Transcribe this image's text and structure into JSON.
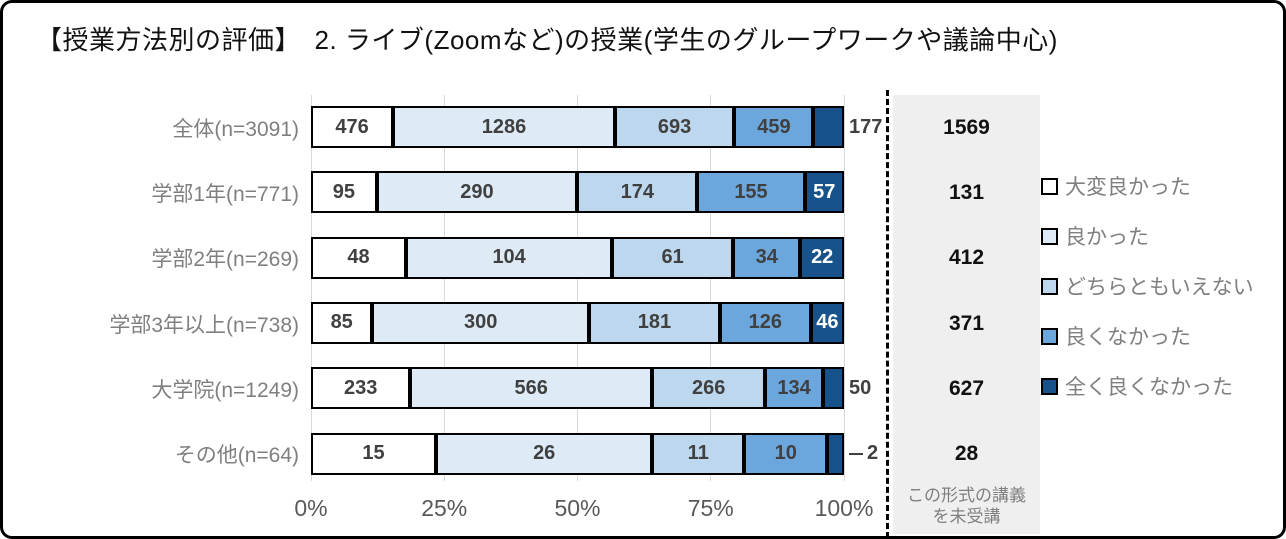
{
  "title": "【授業方法別の評価】　2. ライブ(Zoomなど)の授業(学生のグループワークや議論中心)",
  "colors": {
    "segment_colors": [
      "#FFFFFF",
      "#DEEBF7",
      "#BDD7EE",
      "#6BA6DC",
      "#17538A"
    ],
    "segment_border": "#000000",
    "gridline": "#D9D9D9",
    "category_label": "#7F7F7F",
    "value_label": "#404040",
    "value_label_on_dark": "#FFFFFF",
    "not_attended_bg": "#EFEFEF",
    "axis_label": "#595959"
  },
  "legend": {
    "items": [
      {
        "label": "大変良かった",
        "color": "#FFFFFF"
      },
      {
        "label": "良かった",
        "color": "#DEEBF7"
      },
      {
        "label": "どちらともいえない",
        "color": "#BDD7EE"
      },
      {
        "label": "良くなかった",
        "color": "#6BA6DC"
      },
      {
        "label": "全く良くなかった",
        "color": "#17538A"
      }
    ]
  },
  "x_axis": {
    "tick_labels": [
      "0%",
      "25%",
      "50%",
      "75%",
      "100%"
    ],
    "tick_percents": [
      0,
      25,
      50,
      75,
      100
    ]
  },
  "not_attended": {
    "note_line1": "この形式の講義",
    "note_line2": "を未受講",
    "values": [
      1569,
      131,
      412,
      371,
      627,
      28
    ]
  },
  "chart_data": {
    "type": "bar",
    "stacked": true,
    "orientation": "horizontal",
    "title": "【授業方法別の評価】　2. ライブ(Zoomなど)の授業(学生のグループワークや議論中心)",
    "categories": [
      "全体(n=3091)",
      "学部1年(n=771)",
      "学部2年(n=269)",
      "学部3年以上(n=738)",
      "大学院(n=1249)",
      "その他(n=64)"
    ],
    "n": [
      3091,
      771,
      269,
      738,
      1249,
      64
    ],
    "series": [
      {
        "name": "大変良かった",
        "values": [
          476,
          95,
          48,
          85,
          233,
          15
        ]
      },
      {
        "name": "良かった",
        "values": [
          1286,
          290,
          104,
          300,
          566,
          26
        ]
      },
      {
        "name": "どちらともいえない",
        "values": [
          693,
          174,
          61,
          181,
          266,
          11
        ]
      },
      {
        "name": "良くなかった",
        "values": [
          459,
          155,
          34,
          126,
          134,
          10
        ]
      },
      {
        "name": "全く良くなかった",
        "values": [
          177,
          57,
          22,
          46,
          50,
          2
        ]
      }
    ],
    "not_attended_series": {
      "name": "この形式の講義を未受講",
      "values": [
        1569,
        131,
        412,
        371,
        627,
        28
      ]
    },
    "xlim": [
      0,
      100
    ],
    "x_tick_labels": [
      "0%",
      "25%",
      "50%",
      "75%",
      "100%"
    ],
    "grid": true,
    "legend_position": "right"
  }
}
